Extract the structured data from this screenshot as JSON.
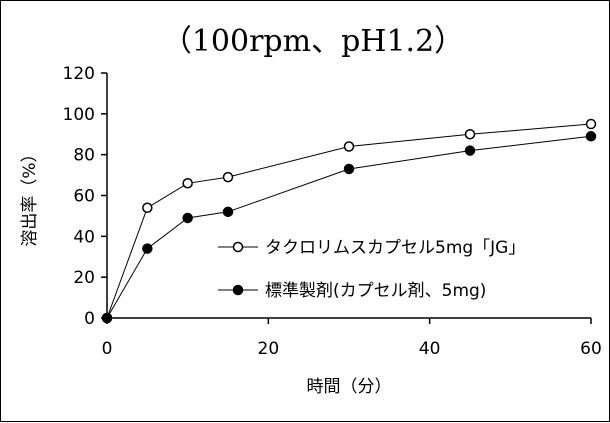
{
  "chart_data": {
    "type": "line",
    "title": "（100rpm、pH1.2）",
    "xlabel": "時間（分）",
    "ylabel": "溶出率（%）",
    "xlim": [
      0,
      60
    ],
    "ylim": [
      0,
      120
    ],
    "x_ticks": [
      "0",
      "20",
      "40",
      "60"
    ],
    "y_ticks": [
      "0",
      "20",
      "40",
      "60",
      "80",
      "100",
      "120"
    ],
    "grid": false,
    "legend_position": "right-middle",
    "series": [
      {
        "name": "タクロリムスカプセル5mg「JG」",
        "marker": "open-circle",
        "color": "#000000",
        "x": [
          0,
          5,
          10,
          15,
          30,
          45,
          60
        ],
        "y": [
          0,
          54,
          66,
          69,
          84,
          90,
          95
        ]
      },
      {
        "name": "標準製剤(カプセル剤、5mg)",
        "marker": "filled-circle",
        "color": "#000000",
        "x": [
          0,
          5,
          10,
          15,
          30,
          45,
          60
        ],
        "y": [
          0,
          34,
          49,
          52,
          73,
          82,
          89
        ]
      }
    ]
  }
}
